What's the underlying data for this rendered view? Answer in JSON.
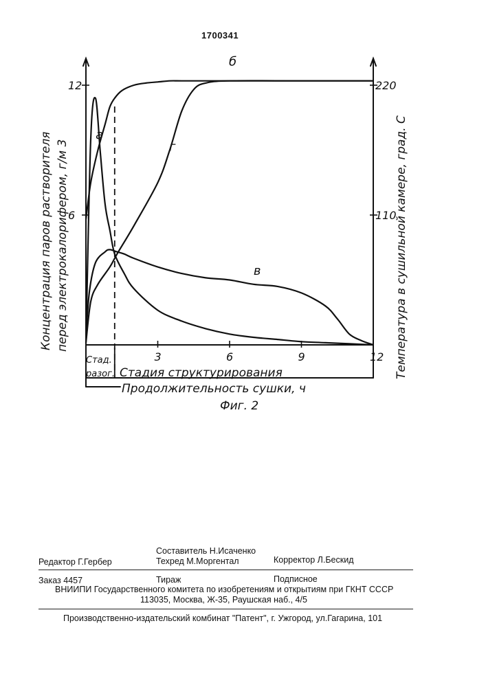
{
  "patent_number": "1700341",
  "chart_data": {
    "type": "line",
    "figure_label": "Фиг. 2",
    "xlabel": "Продолжительность сушки, ч",
    "ylabel_left_line1": "Концентрация паров растворителя",
    "ylabel_left_line2": "перед электрокалорифером, г/м 3",
    "ylabel_right": "Температура в сушильной камере, град. С",
    "xlim": [
      0,
      12
    ],
    "x_ticks": [
      "3",
      "6",
      "9",
      "12"
    ],
    "ylim_left": [
      0,
      12
    ],
    "y_ticks_left": [
      "6",
      "12"
    ],
    "ylim_right": [
      0,
      220
    ],
    "y_ticks_right": [
      "110",
      "220"
    ],
    "stage_boundary_x": 1.2,
    "stages": [
      {
        "label_line1": "Стад.",
        "label_line2": "разог.",
        "x_range": [
          0,
          1.2
        ]
      },
      {
        "label": "Стадия структурирования",
        "x_range": [
          1.2,
          12
        ]
      }
    ],
    "series": [
      {
        "name": "а",
        "axis": "left",
        "x": [
          0,
          0.2,
          0.4,
          0.6,
          0.8,
          1.0,
          1.2,
          1.6,
          2.0,
          3.0,
          4.0,
          5.0,
          6.0,
          7.0,
          8.0,
          9.0,
          10.0,
          11.0,
          12.0
        ],
        "y": [
          0.1,
          9.5,
          11.4,
          8.9,
          6.5,
          5.3,
          4.2,
          3.3,
          2.6,
          1.6,
          1.1,
          0.75,
          0.5,
          0.35,
          0.25,
          0.15,
          0.1,
          0.05,
          0.0
        ]
      },
      {
        "name": "б",
        "axis": "left",
        "x": [
          0,
          0.2,
          0.5,
          0.8,
          1.0,
          1.2,
          1.5,
          2.0,
          2.5,
          3.0,
          3.5,
          4.0,
          5.0,
          6.0,
          9.0,
          12.0
        ],
        "y": [
          5.8,
          7.5,
          9.0,
          10.2,
          11.0,
          11.4,
          11.75,
          12.0,
          12.1,
          12.15,
          12.2,
          12.2,
          12.2,
          12.2,
          12.2,
          12.2
        ]
      },
      {
        "name": "в",
        "axis": "left",
        "x": [
          0,
          0.15,
          0.4,
          0.8,
          1.0,
          1.3,
          1.6,
          2.0,
          3.0,
          4.0,
          5.0,
          6.0,
          7.0,
          8.0,
          9.0,
          10.0,
          10.5,
          11.0,
          11.5,
          12.0
        ],
        "y": [
          0.5,
          2.5,
          3.8,
          4.3,
          4.4,
          4.3,
          4.2,
          4.0,
          3.6,
          3.3,
          3.1,
          3.0,
          2.8,
          2.7,
          2.4,
          1.8,
          1.2,
          0.5,
          0.2,
          0.0
        ]
      },
      {
        "name": "г",
        "axis": "left",
        "x": [
          0,
          0.2,
          0.5,
          1.0,
          1.3,
          2.0,
          3.0,
          3.5,
          4.0,
          4.5,
          5.0,
          6.0,
          9.0,
          12.0
        ],
        "y": [
          0.1,
          2.0,
          2.8,
          3.6,
          4.2,
          5.5,
          7.5,
          9.0,
          10.8,
          11.8,
          12.1,
          12.2,
          12.2,
          12.2
        ]
      }
    ]
  },
  "imprint": {
    "compiler": "Составитель  Н.Исаченко",
    "editor": "Редактор  Г.Гербер",
    "techred": "Техред М.Моргентал",
    "corrector": "Корректор  Л.Бескид",
    "order": "Заказ  4457",
    "circulation": "Тираж",
    "subscription": "Подписное",
    "institute": "ВНИИПИ Государственного комитета по изобретениям и открытиям при ГКНТ СССР",
    "address": "113035, Москва, Ж-35, Раушская наб., 4/5",
    "publisher": "Производственно-издательский комбинат \"Патент\", г. Ужгород, ул.Гагарина, 101"
  }
}
